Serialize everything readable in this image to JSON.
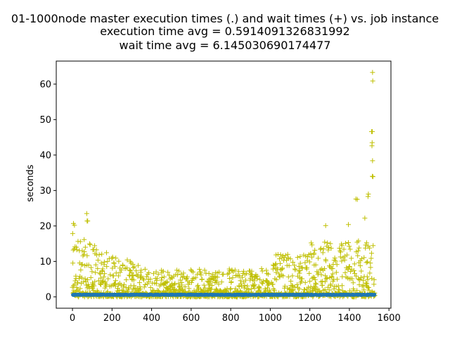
{
  "chart_data": {
    "type": "scatter",
    "title_lines": [
      "01-1000node master execution times (.) and wait times (+) vs. job instance",
      "execution time avg = 0.5914091326831992",
      "wait time avg = 6.145030690174477"
    ],
    "xlabel": "",
    "ylabel": "seconds",
    "xlim": [
      -82,
      1610
    ],
    "ylim": [
      -3.2,
      66.5
    ],
    "xticks": [
      0,
      200,
      400,
      600,
      800,
      1000,
      1200,
      1400,
      1600
    ],
    "yticks": [
      0,
      10,
      20,
      30,
      40,
      50,
      60
    ],
    "grid": false,
    "legend": "none",
    "n_points": 1530,
    "series": [
      {
        "marker": ".",
        "color": "#1f77b4",
        "y_avg": 0.5914091326831992
      },
      {
        "marker": "+",
        "color": "#bfbf00",
        "y_avg": 6.145030690174477,
        "outliers": [
          {
            "x": 1517,
            "y": 63.3
          },
          {
            "x": 1518,
            "y": 60.9
          },
          {
            "x": 1512,
            "y": 46.6
          },
          {
            "x": 1516,
            "y": 46.6
          },
          {
            "x": 1515,
            "y": 43.5
          },
          {
            "x": 1514,
            "y": 42.6
          },
          {
            "x": 1517,
            "y": 38.4
          },
          {
            "x": 1516,
            "y": 34.0
          },
          {
            "x": 1519,
            "y": 33.9
          },
          {
            "x": 1496,
            "y": 29.0
          },
          {
            "x": 1494,
            "y": 28.3
          },
          {
            "x": 1433,
            "y": 27.6
          },
          {
            "x": 1440,
            "y": 27.5
          },
          {
            "x": 72,
            "y": 23.5
          },
          {
            "x": 1478,
            "y": 22.2
          },
          {
            "x": 74,
            "y": 21.4
          },
          {
            "x": 77,
            "y": 21.4
          },
          {
            "x": 5,
            "y": 20.7
          },
          {
            "x": 10,
            "y": 20.2
          },
          {
            "x": 1395,
            "y": 20.4
          },
          {
            "x": 1280,
            "y": 20.1
          }
        ]
      }
    ]
  }
}
